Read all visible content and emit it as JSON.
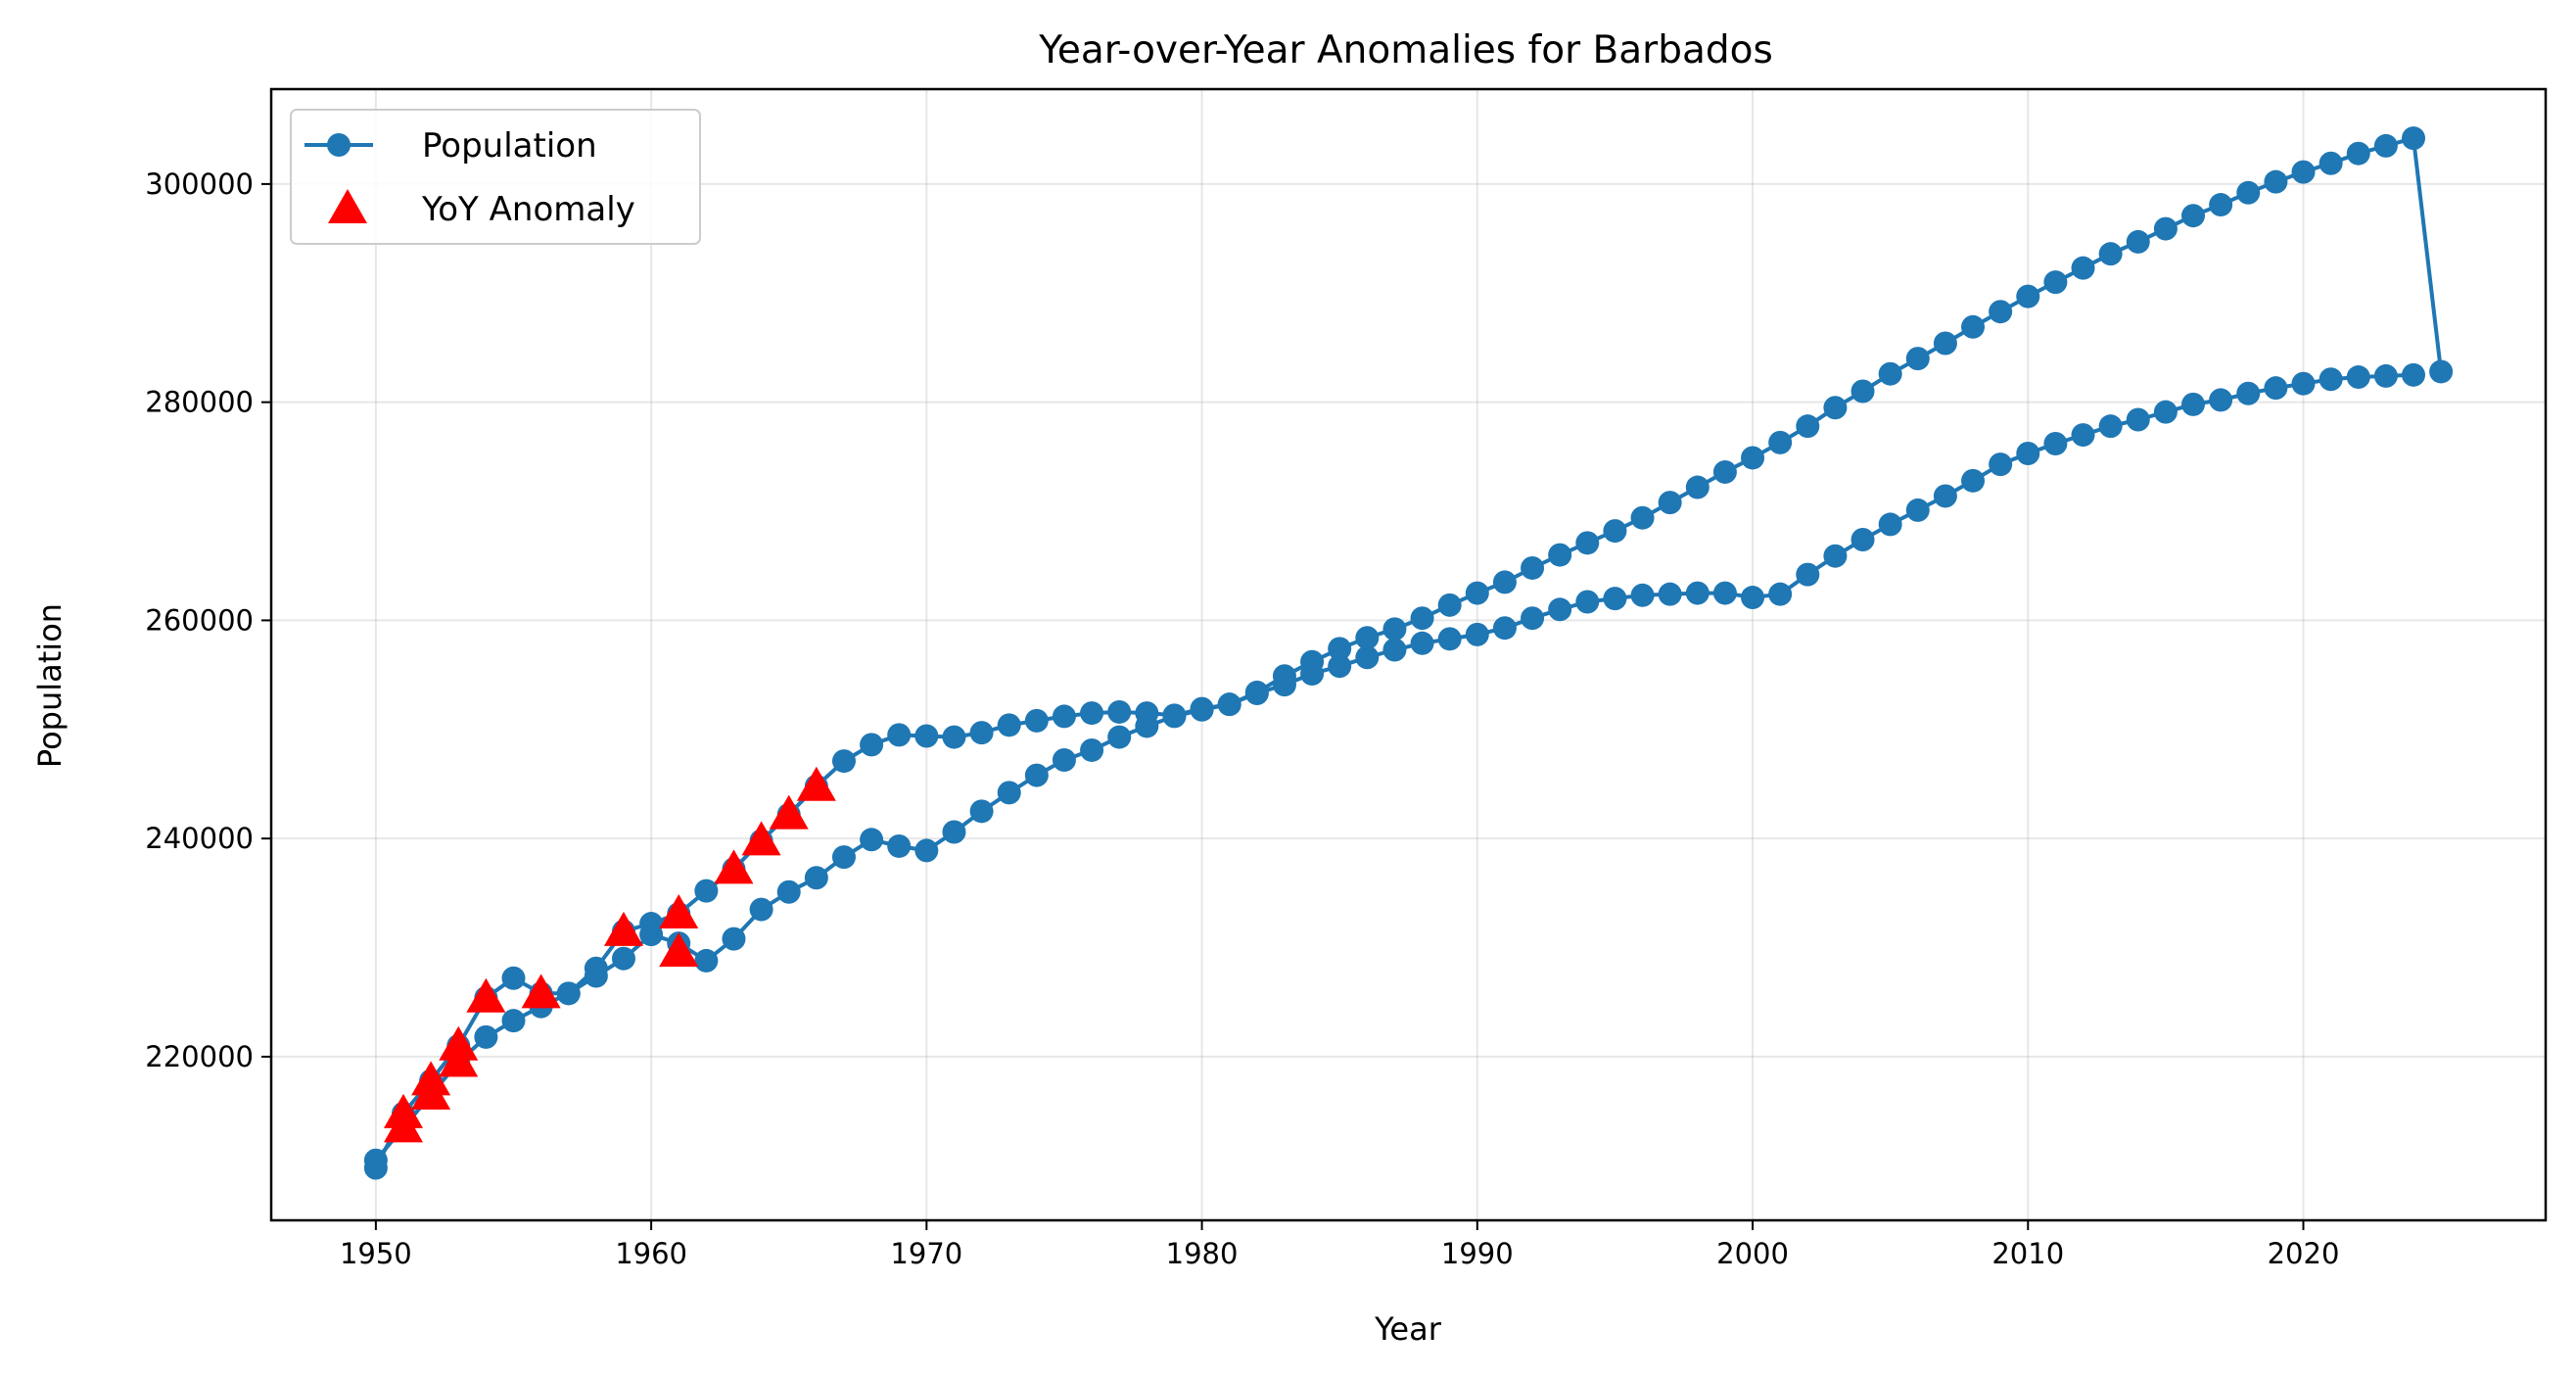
{
  "chart_data": {
    "type": "line",
    "title": "Year-over-Year Anomalies for Barbados",
    "xlabel": "Year",
    "ylabel": "Population",
    "xlim": [
      1946.2,
      2028.8
    ],
    "ylim": [
      205000,
      308700
    ],
    "xticks": [
      1950,
      1960,
      1970,
      1980,
      1990,
      2000,
      2010,
      2020
    ],
    "xtick_labels": [
      "1950",
      "1960",
      "1970",
      "1980",
      "1990",
      "2000",
      "2010",
      "2020"
    ],
    "yticks": [
      220000,
      240000,
      260000,
      280000,
      300000
    ],
    "ytick_labels": [
      "220000",
      "240000",
      "260000",
      "280000",
      "300000"
    ],
    "grid": true,
    "legend": {
      "placement": "top-left",
      "entries": [
        "Population",
        "YoY Anomaly"
      ]
    },
    "colors": {
      "population": "#1f77b4",
      "anomaly": "#ff0000"
    },
    "series": [
      {
        "name": "Population",
        "style": "line-with-circle-markers",
        "x": [
          1950,
          1951,
          1952,
          1953,
          1954,
          1955,
          1956,
          1957,
          1958,
          1959,
          1960,
          1961,
          1962,
          1963,
          1964,
          1965,
          1966,
          1967,
          1968,
          1969,
          1970,
          1971,
          1972,
          1973,
          1974,
          1975,
          1976,
          1977,
          1978,
          1979,
          1980,
          1981,
          1982,
          1983,
          1984,
          1985,
          1986,
          1987,
          1988,
          1989,
          1990,
          1991,
          1992,
          1993,
          1994,
          1995,
          1996,
          1997,
          1998,
          1999,
          2000,
          2001,
          2002,
          2003,
          2004,
          2005,
          2006,
          2007,
          2008,
          2009,
          2010,
          2011,
          2012,
          2013,
          2014,
          2015,
          2016,
          2017,
          2018,
          2019,
          2020,
          2021,
          2022,
          2023,
          2024,
          1950,
          1951,
          1952,
          1953,
          1954,
          1955,
          1956,
          1957,
          1958,
          1959,
          1960,
          1961,
          1962,
          1963,
          1964,
          1965,
          1966,
          1967,
          1968,
          1969,
          1970,
          1971,
          1972,
          1973,
          1974,
          1975,
          1976,
          1977,
          1978,
          1979,
          1980,
          1981,
          1982,
          1983,
          1984,
          1985,
          1986,
          1987,
          1988,
          1989,
          1990,
          1991,
          1992,
          1993,
          1994,
          1995,
          1996,
          1997,
          1998,
          1999,
          2000,
          2001,
          2002,
          2003,
          2004,
          2005,
          2006,
          2007,
          2008,
          2009,
          2010,
          2011,
          2012,
          2013,
          2014,
          2015,
          2016,
          2017,
          2018,
          2019,
          2020,
          2021,
          2022,
          2023,
          2024,
          2025
        ],
        "y": [
          210500,
          213500,
          216500,
          219500,
          221800,
          223300,
          224600,
          225800,
          227400,
          229000,
          231200,
          230400,
          228800,
          230800,
          233500,
          235100,
          236400,
          238300,
          239900,
          239300,
          238900,
          240600,
          242500,
          244200,
          245800,
          247200,
          248100,
          249300,
          250300,
          251200,
          251800,
          252300,
          253300,
          254100,
          255100,
          255800,
          256600,
          257300,
          257900,
          258300,
          258700,
          259300,
          260200,
          261000,
          261700,
          262000,
          262300,
          262400,
          262500,
          262500,
          262100,
          262400,
          264200,
          265900,
          267400,
          268800,
          270100,
          271400,
          272800,
          274300,
          275300,
          276200,
          277000,
          277800,
          278400,
          279100,
          279800,
          280200,
          280800,
          281300,
          281700,
          282100,
          282300,
          282400,
          282500,
          209800,
          214800,
          217800,
          221000,
          225400,
          227200,
          225800,
          225800,
          228100,
          231500,
          232200,
          233100,
          235200,
          237200,
          239800,
          242200,
          244800,
          247100,
          248600,
          249500,
          249400,
          249300,
          249700,
          250400,
          250800,
          251200,
          251500,
          251600,
          251500,
          251300,
          251900,
          252300,
          253400,
          254900,
          256200,
          257400,
          258400,
          259200,
          260200,
          261400,
          262500,
          263500,
          264800,
          266000,
          267100,
          268200,
          269400,
          270800,
          272200,
          273600,
          274900,
          276300,
          277800,
          279500,
          281000,
          282600,
          284000,
          285400,
          286900,
          288300,
          289700,
          291000,
          292300,
          293600,
          294700,
          295900,
          297100,
          298100,
          299200,
          300200,
          301100,
          301900,
          302800,
          303500,
          304200,
          282800
        ],
        "segments": [
          [
            0,
            74
          ],
          [
            75,
            150
          ]
        ]
      },
      {
        "name": "YoY Anomaly",
        "style": "triangle-markers",
        "x": [
          1951,
          1951,
          1952,
          1952,
          1953,
          1953,
          1954,
          1956,
          1959,
          1961,
          1961,
          1963,
          1964,
          1965,
          1966
        ],
        "y": [
          213500,
          214800,
          216500,
          217800,
          219500,
          221000,
          225400,
          225800,
          231500,
          233100,
          229600,
          237200,
          239800,
          242200,
          244800
        ]
      }
    ]
  }
}
